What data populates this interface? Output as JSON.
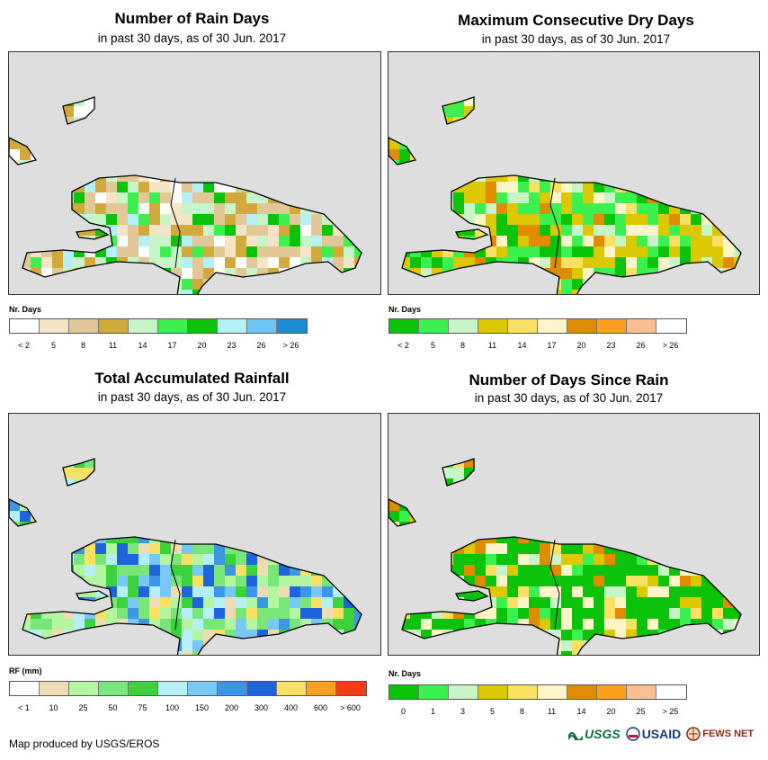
{
  "panels": [
    {
      "title": "Number of Rain Days",
      "subtitle": "in past 30 days, as of 30 Jun. 2017",
      "legend_title": "Nr. Days",
      "legend_labels": [
        "< 2",
        "5",
        "8",
        "11",
        "14",
        "17",
        "20",
        "23",
        "26",
        "> 26"
      ],
      "legend_colors": [
        "#ffffff",
        "#f5e4c8",
        "#e2c896",
        "#d2aa3c",
        "#c8f5c8",
        "#3cf050",
        "#0ac30a",
        "#b4f0f5",
        "#6ec3f5",
        "#1e8cd2"
      ]
    },
    {
      "title": "Maximum Consecutive Dry Days",
      "subtitle": "in past 30 days, as of 30 Jun. 2017",
      "legend_title": "Nr. Days",
      "legend_labels": [
        "< 2",
        "5",
        "8",
        "11",
        "14",
        "17",
        "20",
        "23",
        "26",
        "> 26"
      ],
      "legend_colors": [
        "#0ac30a",
        "#3cf050",
        "#c8f5c8",
        "#dcc800",
        "#fae164",
        "#fff5c8",
        "#e18c00",
        "#faa01e",
        "#fabe91",
        "#ffffff"
      ]
    },
    {
      "title": "Total Accumulated Rainfall",
      "subtitle": "in past 30 days, as of 30 Jun. 2017",
      "legend_title": "RF (mm)",
      "legend_labels": [
        "< 1",
        "10",
        "25",
        "50",
        "75",
        "100",
        "150",
        "200",
        "300",
        "400",
        "600",
        "> 600"
      ],
      "legend_colors": [
        "#ffffff",
        "#f0dcb4",
        "#b4f5a0",
        "#78e678",
        "#3cd23c",
        "#b4f0f5",
        "#78c8f5",
        "#3c96e6",
        "#1e64dc",
        "#fae164",
        "#faa01e",
        "#fa3c14"
      ]
    },
    {
      "title": "Number of Days Since Rain",
      "subtitle": "in past 30 days, as of 30 Jun. 2017",
      "legend_title": "Nr. Days",
      "legend_labels": [
        "0",
        "1",
        "3",
        "5",
        "8",
        "11",
        "14",
        "20",
        "25",
        "> 25"
      ],
      "legend_colors": [
        "#0ac30a",
        "#3cf050",
        "#c8f5c8",
        "#dcc800",
        "#fae164",
        "#fff5c8",
        "#e18c00",
        "#faa01e",
        "#fabe91",
        "#ffffff"
      ]
    }
  ],
  "footer": "Map produced by USGS/EROS",
  "logos": {
    "usgs": "USGS",
    "usaid": "USAID",
    "fews": "FEWS NET"
  }
}
